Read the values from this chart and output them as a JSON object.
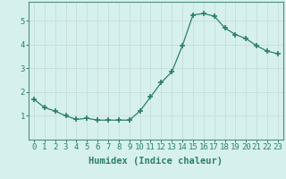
{
  "x": [
    0,
    1,
    2,
    3,
    4,
    5,
    6,
    7,
    8,
    9,
    10,
    11,
    12,
    13,
    14,
    15,
    16,
    17,
    18,
    19,
    20,
    21,
    22,
    23
  ],
  "y": [
    1.7,
    1.35,
    1.2,
    1.0,
    0.85,
    0.9,
    0.82,
    0.82,
    0.82,
    0.82,
    1.2,
    1.8,
    2.4,
    2.85,
    3.95,
    5.25,
    5.3,
    5.2,
    4.7,
    4.42,
    4.25,
    3.95,
    3.72,
    3.62
  ],
  "xlabel": "Humidex (Indice chaleur)",
  "ylim": [
    0,
    5.8
  ],
  "xlim": [
    -0.5,
    23.5
  ],
  "yticks": [
    1,
    2,
    3,
    4,
    5
  ],
  "xticks": [
    0,
    1,
    2,
    3,
    4,
    5,
    6,
    7,
    8,
    9,
    10,
    11,
    12,
    13,
    14,
    15,
    16,
    17,
    18,
    19,
    20,
    21,
    22,
    23
  ],
  "line_color": "#2e7d6e",
  "marker": "+",
  "marker_size": 4.0,
  "bg_color": "#d6f0ed",
  "grid_color": "#c8deda",
  "spine_color": "#4a9080",
  "xlabel_fontsize": 7.5,
  "tick_fontsize": 6.5,
  "tick_color": "#2e7d6e"
}
